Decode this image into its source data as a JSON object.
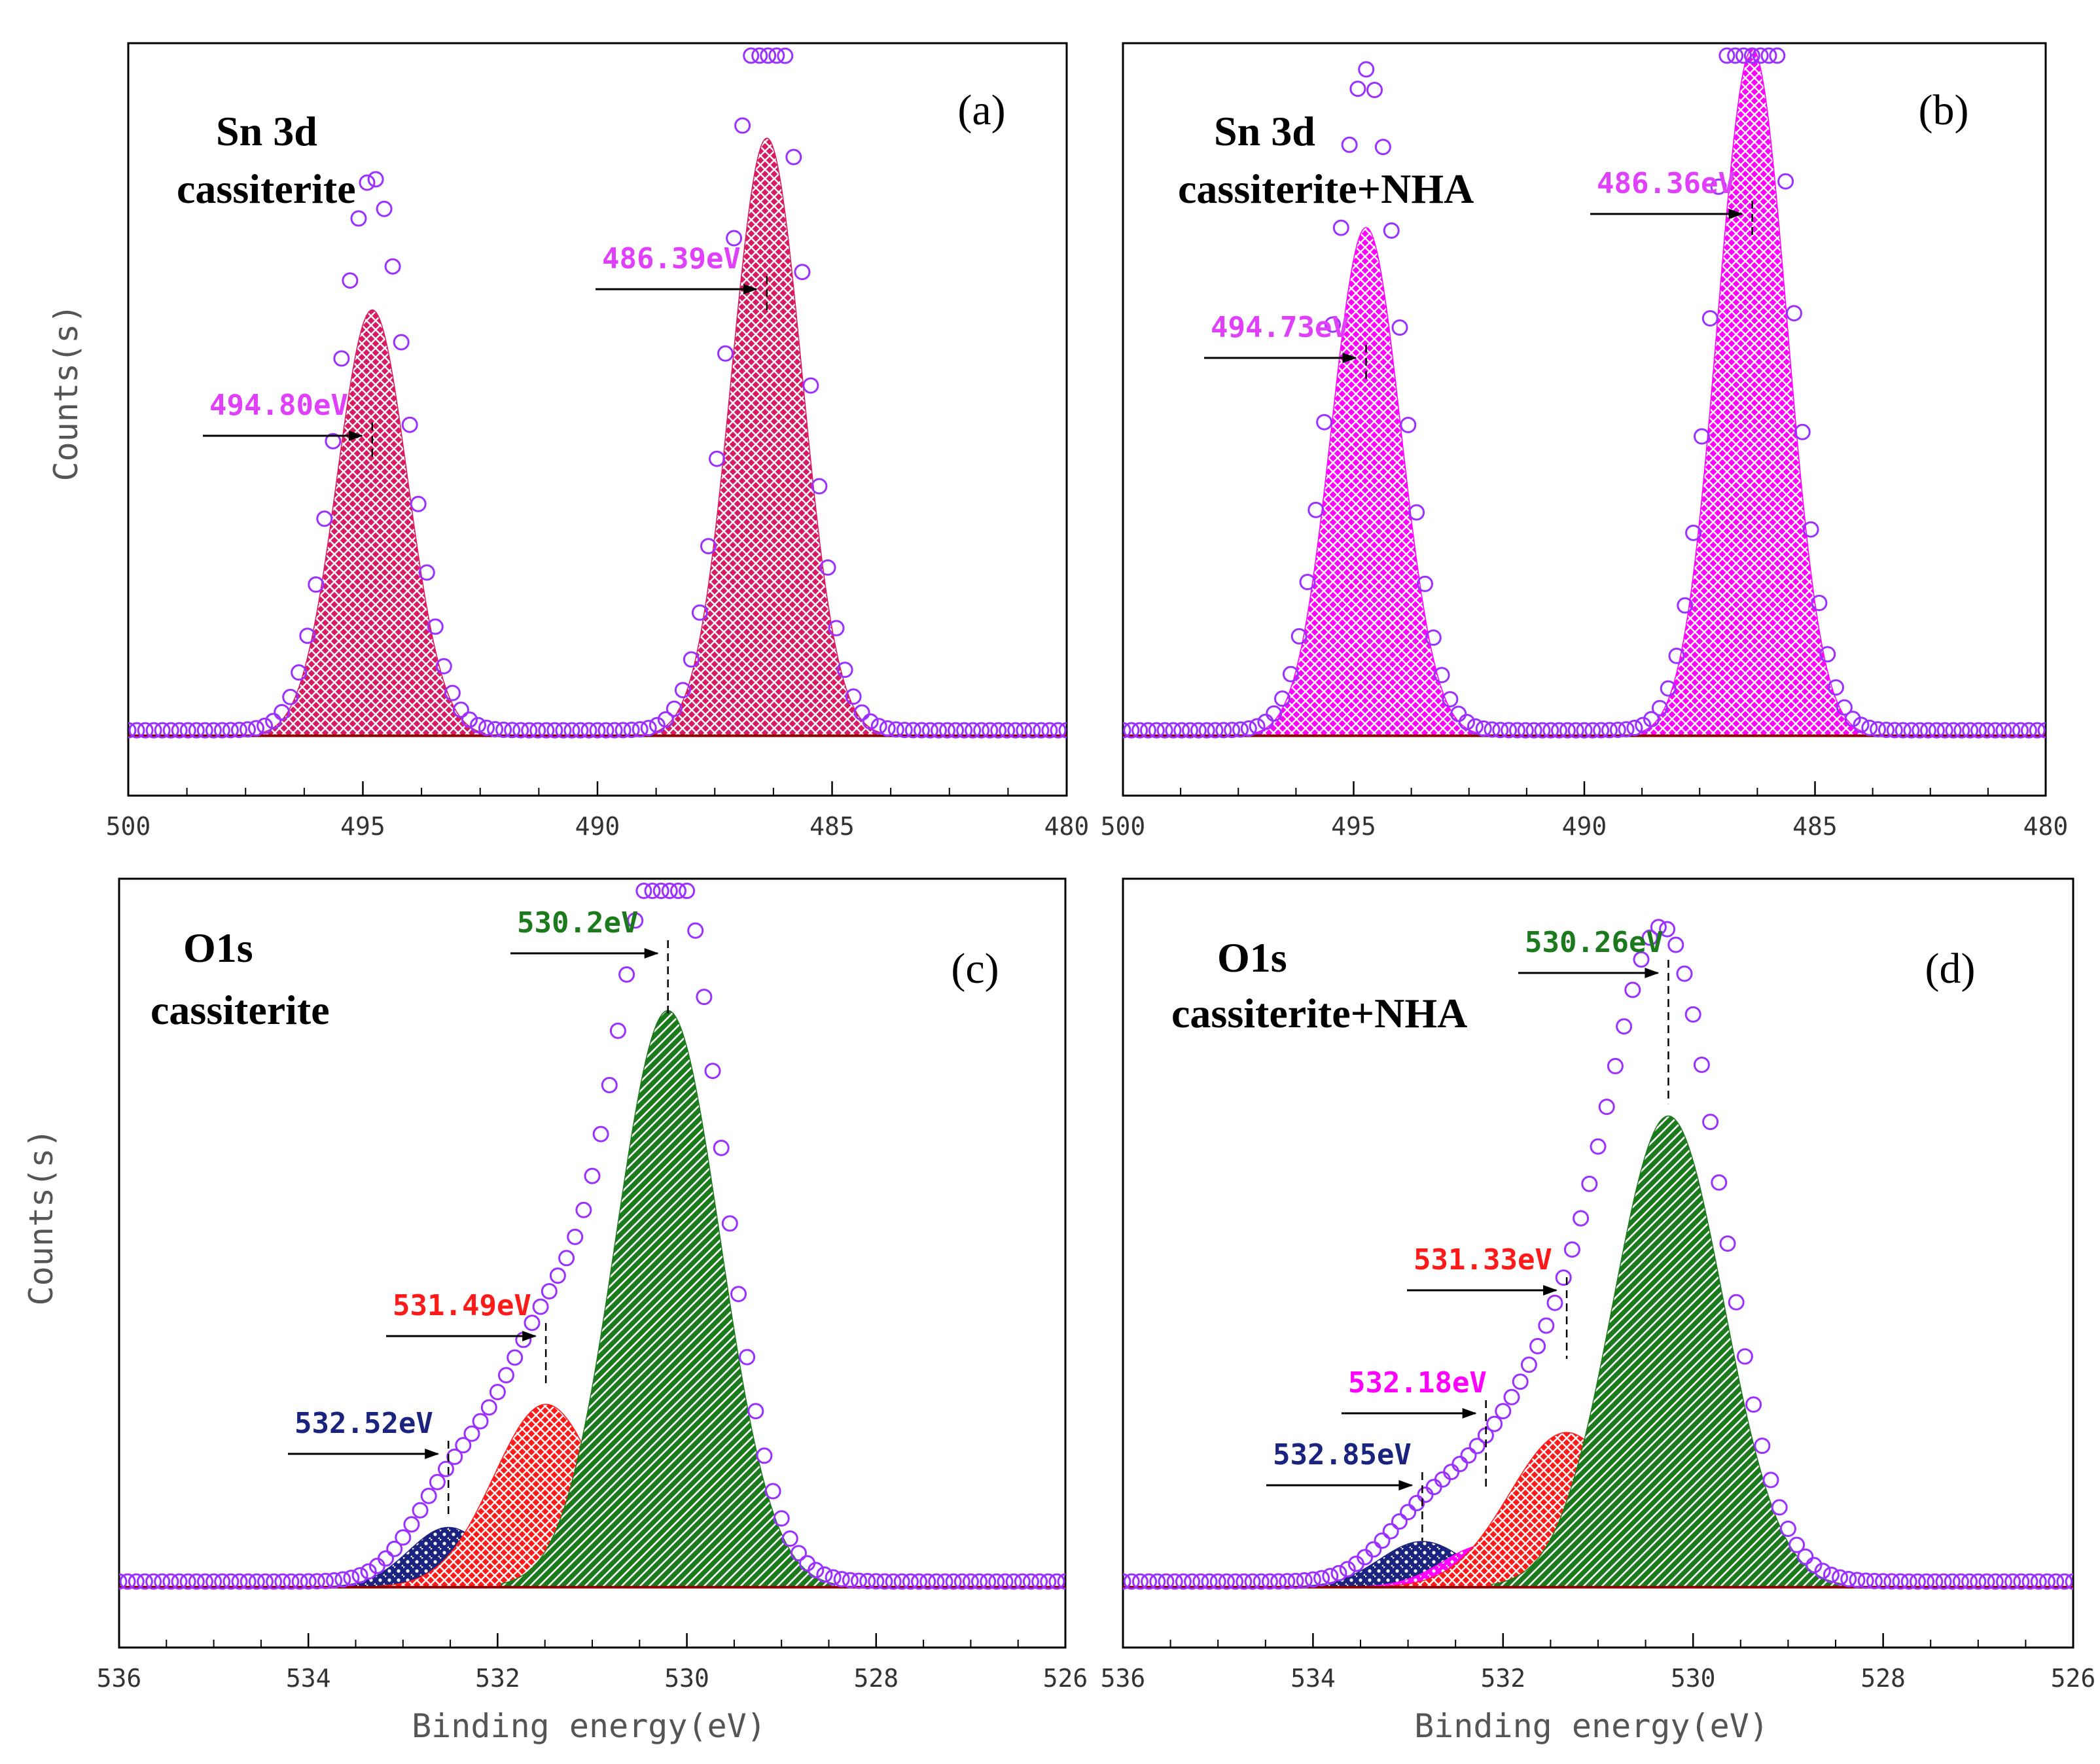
{
  "figure": {
    "y_label": "Counts(s)",
    "x_label": "Binding energy(eV)"
  },
  "colors": {
    "marker": "#9b30ff",
    "frame": "#000000",
    "baseline": "#8b0000"
  },
  "chart_data": [
    {
      "id": "a",
      "type": "area",
      "panel_label": "(a)",
      "title_lines": [
        "Sn 3d",
        "cassiterite"
      ],
      "x_range": [
        500,
        480
      ],
      "x_ticks": [
        500,
        495,
        490,
        485,
        480
      ],
      "ylabel": "Counts(s)",
      "xlabel": "",
      "baseline": 0.03,
      "y_max": 1.0,
      "peaks": [
        {
          "center": 494.8,
          "height": 0.62,
          "width": 0.75,
          "color": "#d81b60",
          "pattern": "cross"
        },
        {
          "center": 486.39,
          "height": 0.87,
          "width": 0.75,
          "color": "#d81b60",
          "pattern": "cross"
        }
      ],
      "annotations": [
        {
          "text": "494.80eV",
          "x": 494.8,
          "color": "#e040fb"
        },
        {
          "text": "486.39eV",
          "x": 486.39,
          "color": "#e040fb"
        }
      ]
    },
    {
      "id": "b",
      "type": "area",
      "panel_label": "(b)",
      "title_lines": [
        "Sn 3d",
        "cassiterite+NHA"
      ],
      "x_range": [
        500,
        480
      ],
      "x_ticks": [
        500,
        495,
        490,
        485,
        480
      ],
      "ylabel": "",
      "xlabel": "",
      "baseline": 0.03,
      "y_max": 1.0,
      "peaks": [
        {
          "center": 494.73,
          "height": 0.74,
          "width": 0.75,
          "color": "#ff00ff",
          "pattern": "cross"
        },
        {
          "center": 486.36,
          "height": 1.0,
          "width": 0.75,
          "color": "#ff00ff",
          "pattern": "cross"
        }
      ],
      "annotations": [
        {
          "text": "494.73eV",
          "x": 494.73,
          "color": "#e040fb"
        },
        {
          "text": "486.36eV",
          "x": 486.36,
          "color": "#e040fb"
        }
      ]
    },
    {
      "id": "c",
      "type": "area",
      "panel_label": "(c)",
      "title_lines": [
        "O1s",
        "cassiterite"
      ],
      "x_range": [
        536,
        526
      ],
      "x_ticks": [
        536,
        534,
        532,
        530,
        528,
        526
      ],
      "ylabel": "Counts(s)",
      "xlabel": "Binding energy(eV)",
      "baseline": 0.03,
      "y_max": 1.0,
      "peaks": [
        {
          "center": 532.52,
          "height": 0.085,
          "width": 0.42,
          "color": "#1a237e",
          "pattern": "dots"
        },
        {
          "center": 531.49,
          "height": 0.26,
          "width": 0.55,
          "color": "#ff1a1a",
          "pattern": "cross"
        },
        {
          "center": 530.2,
          "height": 0.82,
          "width": 0.55,
          "color": "#1b7a1b",
          "pattern": "diag"
        }
      ],
      "annotations": [
        {
          "text": "532.52eV",
          "x": 532.52,
          "color": "#1a237e"
        },
        {
          "text": "531.49eV",
          "x": 531.49,
          "color": "#ff1a1a"
        },
        {
          "text": "530.2eV",
          "x": 530.2,
          "color": "#1b7a1b"
        }
      ]
    },
    {
      "id": "d",
      "type": "area",
      "panel_label": "(d)",
      "title_lines": [
        "O1s",
        "cassiterite+NHA"
      ],
      "x_range": [
        536,
        526
      ],
      "x_ticks": [
        536,
        534,
        532,
        530,
        528,
        526
      ],
      "ylabel": "",
      "xlabel": "Binding energy(eV)",
      "baseline": 0.03,
      "y_max": 1.0,
      "peaks": [
        {
          "center": 532.85,
          "height": 0.065,
          "width": 0.45,
          "color": "#1a237e",
          "pattern": "dots"
        },
        {
          "center": 532.18,
          "height": 0.06,
          "width": 0.45,
          "color": "#ff00ff",
          "pattern": "dots"
        },
        {
          "center": 531.33,
          "height": 0.22,
          "width": 0.6,
          "color": "#ff1a1a",
          "pattern": "cross"
        },
        {
          "center": 530.26,
          "height": 0.67,
          "width": 0.58,
          "color": "#1b7a1b",
          "pattern": "diag"
        }
      ],
      "annotations": [
        {
          "text": "532.85eV",
          "x": 532.85,
          "color": "#1a237e"
        },
        {
          "text": "532.18eV",
          "x": 532.18,
          "color": "#ff00ff"
        },
        {
          "text": "531.33eV",
          "x": 531.33,
          "color": "#ff1a1a"
        },
        {
          "text": "530.26eV",
          "x": 530.26,
          "color": "#1b7a1b"
        }
      ]
    }
  ]
}
